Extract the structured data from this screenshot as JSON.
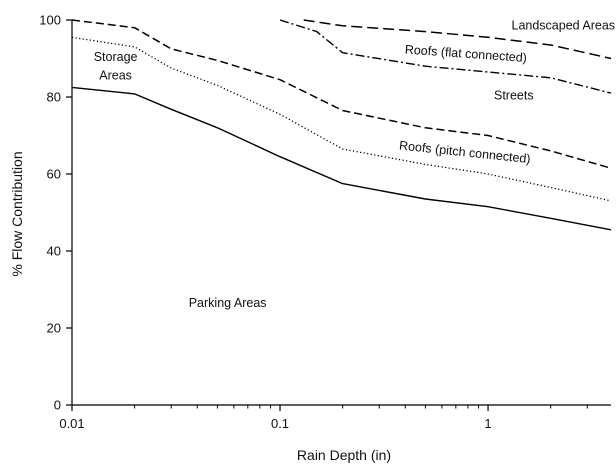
{
  "chart_data": {
    "type": "line",
    "xlabel": "Rain Depth (in)",
    "ylabel": "% Flow Contribution",
    "xscale": "log",
    "xlim": [
      0.01,
      3.9
    ],
    "ylim": [
      0,
      100
    ],
    "x_ticks": [
      "0.01",
      "0.1",
      "1"
    ],
    "y_ticks": [
      "0",
      "20",
      "40",
      "60",
      "80",
      "100"
    ],
    "grid": false,
    "legend": "none",
    "series": [
      {
        "style": "solid",
        "points": [
          [
            0.01,
            82.5
          ],
          [
            0.02,
            80.8
          ],
          [
            0.03,
            76.8
          ],
          [
            0.05,
            72
          ],
          [
            0.1,
            64.5
          ],
          [
            0.2,
            57.5
          ],
          [
            0.5,
            53.5
          ],
          [
            1,
            51.5
          ],
          [
            2,
            48.5
          ],
          [
            3.9,
            45.5
          ]
        ]
      },
      {
        "style": "dotted",
        "points": [
          [
            0.01,
            95.5
          ],
          [
            0.02,
            93
          ],
          [
            0.03,
            87.5
          ],
          [
            0.05,
            83
          ],
          [
            0.1,
            75.5
          ],
          [
            0.2,
            66.5
          ],
          [
            0.5,
            62.5
          ],
          [
            1,
            60
          ],
          [
            2,
            56.5
          ],
          [
            3.9,
            53
          ]
        ]
      },
      {
        "style": "dashed",
        "points": [
          [
            0.01,
            100
          ],
          [
            0.02,
            98
          ],
          [
            0.03,
            92.5
          ],
          [
            0.05,
            89.5
          ],
          [
            0.1,
            84.5
          ],
          [
            0.2,
            76.5
          ],
          [
            0.5,
            72
          ],
          [
            1,
            70
          ],
          [
            2,
            66
          ],
          [
            3.9,
            61.5
          ]
        ]
      },
      {
        "style": "dashdot",
        "points": [
          [
            0.1,
            100
          ],
          [
            0.15,
            97
          ],
          [
            0.2,
            91.5
          ],
          [
            0.5,
            88
          ],
          [
            1,
            86.5
          ],
          [
            2,
            85
          ],
          [
            3.9,
            81
          ]
        ]
      },
      {
        "style": "longdash",
        "points": [
          [
            0.13,
            100
          ],
          [
            0.2,
            98.5
          ],
          [
            0.5,
            97
          ],
          [
            1,
            95.5
          ],
          [
            2,
            93.5
          ],
          [
            3.9,
            90
          ]
        ]
      }
    ],
    "annotations": [
      {
        "text": "Landscaped Areas",
        "x": 2.3,
        "y": 97.5,
        "rotate": 0
      },
      {
        "text": "Roofs (flat connected)",
        "x": 0.78,
        "y": 90.2,
        "rotate": 4
      },
      {
        "text": "Streets",
        "x": 1.33,
        "y": 79.3,
        "rotate": 0
      },
      {
        "text": "Roofs (pitch connected)",
        "x": 0.77,
        "y": 64.6,
        "rotate": 6
      },
      {
        "text": "Storage",
        "x": 0.0162,
        "y": 89.3,
        "rotate": 0
      },
      {
        "text": "Areas",
        "x": 0.0162,
        "y": 84.5,
        "rotate": 0
      },
      {
        "text": "Parking Areas",
        "x": 0.056,
        "y": 25.5,
        "rotate": 0
      }
    ]
  }
}
